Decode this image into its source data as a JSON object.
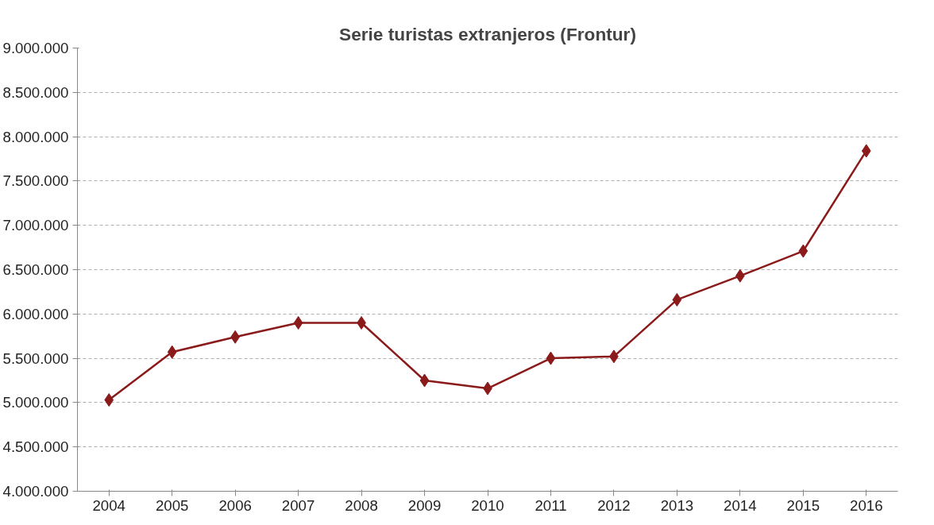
{
  "chart_data": {
    "type": "line",
    "title": "Serie turistas extranjeros (Frontur)",
    "categories": [
      "2004",
      "2005",
      "2006",
      "2007",
      "2008",
      "2009",
      "2010",
      "2011",
      "2012",
      "2013",
      "2014",
      "2015",
      "2016"
    ],
    "series": [
      {
        "color": "#8b1a1a",
        "values": [
          5030000,
          5570000,
          5740000,
          5900000,
          5900000,
          5250000,
          5160000,
          5500000,
          5520000,
          6160000,
          6430000,
          6710000,
          7840000
        ]
      }
    ],
    "ylim": [
      4000000,
      9000000
    ],
    "yticks": [
      {
        "value": 4000000,
        "label": "4.000.000"
      },
      {
        "value": 4500000,
        "label": "4.500.000"
      },
      {
        "value": 5000000,
        "label": "5.000.000"
      },
      {
        "value": 5500000,
        "label": "5.500.000"
      },
      {
        "value": 6000000,
        "label": "6.000.000"
      },
      {
        "value": 6500000,
        "label": "6.500.000"
      },
      {
        "value": 7000000,
        "label": "7.000.000"
      },
      {
        "value": 7500000,
        "label": "7.500.000"
      },
      {
        "value": 8000000,
        "label": "8.000.000"
      },
      {
        "value": 8500000,
        "label": "8.500.000"
      },
      {
        "value": 9000000,
        "label": "9.000.000"
      }
    ],
    "grid": "y",
    "marker": "diamond",
    "line_style": "solid"
  }
}
